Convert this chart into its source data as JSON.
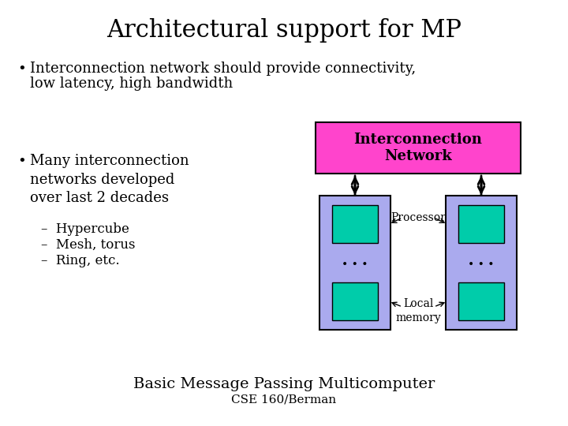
{
  "title": "Architectural support for MP",
  "title_fontsize": 22,
  "title_font": "serif",
  "bg_color": "#ffffff",
  "bullet1_line1": "Interconnection network should provide connectivity,",
  "bullet1_line2": "low latency, high bandwidth",
  "bullet2": "Many interconnection\nnetworks developed\nover last 2 decades",
  "sub_bullets": [
    "Hypercube",
    "Mesh, torus",
    "Ring, etc."
  ],
  "interconnect_label": "Interconnection\nNetwork",
  "interconnect_bg": "#ff44cc",
  "node_bg": "#aaaaee",
  "proc_color": "#00ccaa",
  "mem_color": "#00ccaa",
  "proc_label": "Processor",
  "mem_label": "Local\nmemory",
  "dots": "• • •",
  "caption1": "Basic Message Passing Multicomputer",
  "caption2": "CSE 160/Berman",
  "text_color": "#000000",
  "body_fontsize": 13,
  "sub_fontsize": 12,
  "caption1_fontsize": 14,
  "caption2_fontsize": 11,
  "diag_label_fontsize": 10
}
